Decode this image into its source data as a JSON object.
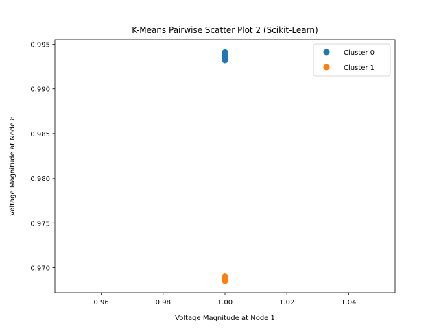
{
  "chart_data": {
    "type": "scatter",
    "title": "K-Means Pairwise Scatter Plot 2 (Scikit-Learn)",
    "xlabel": "Voltage Magnitude at Node 1",
    "ylabel": "Voltage Magnitude at Node 8",
    "xlim": [
      0.945,
      1.055
    ],
    "ylim": [
      0.9672,
      0.9955
    ],
    "xticks": [
      "0.96",
      "0.98",
      "1.00",
      "1.02",
      "1.04"
    ],
    "yticks": [
      "0.970",
      "0.975",
      "0.980",
      "0.985",
      "0.990",
      "0.995"
    ],
    "grid": false,
    "legend_position": "top-right",
    "series": [
      {
        "name": "Cluster 0",
        "color": "#1f77b4",
        "points": [
          [
            1.0,
            0.9941
          ],
          [
            1.0,
            0.9939
          ],
          [
            1.0,
            0.9938
          ],
          [
            1.0,
            0.9937
          ],
          [
            1.0,
            0.9936
          ],
          [
            1.0,
            0.9935
          ],
          [
            1.0,
            0.9934
          ],
          [
            1.0,
            0.9933
          ],
          [
            1.0,
            0.9932
          ],
          [
            1.0,
            0.994
          ]
        ]
      },
      {
        "name": "Cluster 1",
        "color": "#ff7f0e",
        "points": [
          [
            1.0,
            0.969
          ],
          [
            1.0,
            0.9689
          ],
          [
            1.0,
            0.9688
          ],
          [
            1.0,
            0.9687
          ],
          [
            1.0,
            0.9686
          ],
          [
            1.0,
            0.9685
          ]
        ]
      }
    ]
  }
}
